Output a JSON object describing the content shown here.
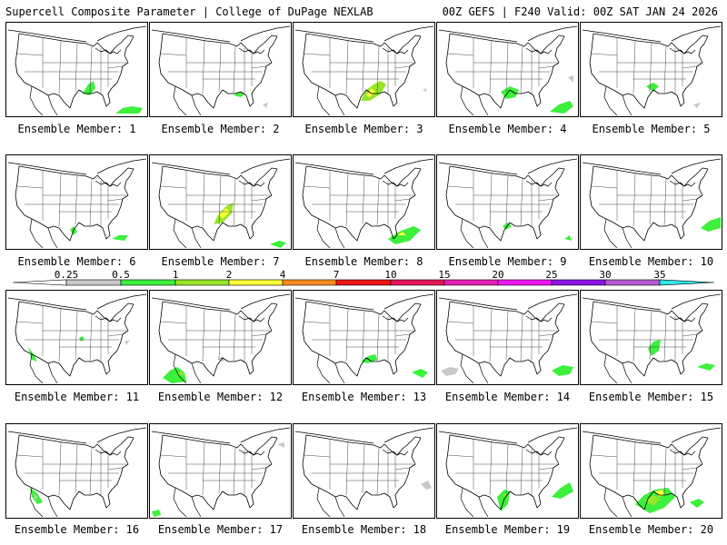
{
  "header": {
    "left": "Supercell Composite Parameter | College of DuPage NEXLAB",
    "right": "00Z GEFS | F240 Valid: 00Z SAT JAN 24 2026"
  },
  "panels": [
    {
      "label": "Ensemble Member: 1"
    },
    {
      "label": "Ensemble Member: 2"
    },
    {
      "label": "Ensemble Member: 3"
    },
    {
      "label": "Ensemble Member: 4"
    },
    {
      "label": "Ensemble Member: 5"
    },
    {
      "label": "Ensemble Member: 6"
    },
    {
      "label": "Ensemble Member: 7"
    },
    {
      "label": "Ensemble Member: 8"
    },
    {
      "label": "Ensemble Member: 9"
    },
    {
      "label": "Ensemble Member: 10"
    },
    {
      "label": "Ensemble Member: 11"
    },
    {
      "label": "Ensemble Member: 12"
    },
    {
      "label": "Ensemble Member: 13"
    },
    {
      "label": "Ensemble Member: 14"
    },
    {
      "label": "Ensemble Member: 15"
    },
    {
      "label": "Ensemble Member: 16"
    },
    {
      "label": "Ensemble Member: 17"
    },
    {
      "label": "Ensemble Member: 18"
    },
    {
      "label": "Ensemble Member: 19"
    },
    {
      "label": "Ensemble Member: 20"
    }
  ],
  "colorbar": {
    "ticks": [
      "0.25",
      "0.5",
      "1",
      "2",
      "4",
      "7",
      "10",
      "15",
      "20",
      "25",
      "30",
      "35"
    ],
    "colors": [
      "#c8c8c8",
      "#3cf03c",
      "#96e628",
      "#ffff3c",
      "#ff8c1e",
      "#f01414",
      "#e6145a",
      "#e61eb4",
      "#f014f0",
      "#8c14e6",
      "#b45ad2",
      "#32e6e6"
    ]
  }
}
